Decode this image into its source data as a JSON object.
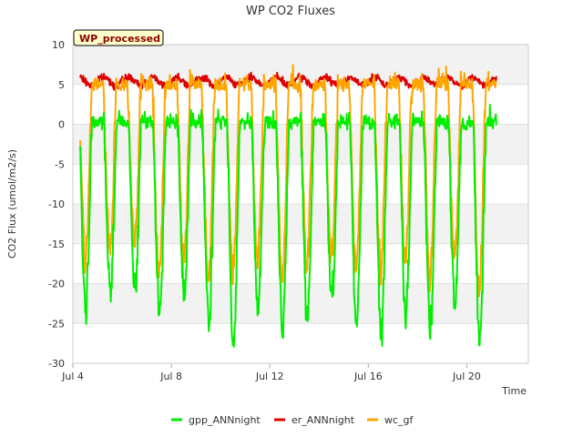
{
  "chart_data": {
    "type": "line",
    "title": "WP CO2 Fluxes",
    "xlabel": "Time",
    "ylabel": "CO2 Flux (umol/m2/s)",
    "badge": "WP_processed",
    "xlim": [
      4.0,
      22.5
    ],
    "ylim": [
      -30,
      10
    ],
    "x_ticks": [
      {
        "value": 4,
        "label": "Jul 4"
      },
      {
        "value": 8,
        "label": "Jul 8"
      },
      {
        "value": 12,
        "label": "Jul 12"
      },
      {
        "value": 16,
        "label": "Jul 16"
      },
      {
        "value": 20,
        "label": "Jul 20"
      }
    ],
    "y_ticks": [
      -30,
      -25,
      -20,
      -15,
      -10,
      -5,
      0,
      5,
      10
    ],
    "x_start": 4.3,
    "x_end": 21.2,
    "series": [
      {
        "name": "gpp_ANNnight",
        "color": "#00ee00",
        "daily_min": [
          -23,
          -21,
          -21,
          -24,
          -21,
          -25,
          -28,
          -23,
          -26,
          -24,
          -22,
          -25,
          -26,
          -24,
          -26,
          -23,
          -27
        ],
        "noon_offset": 0.52,
        "night_level": 0.3
      },
      {
        "name": "er_ANNnight",
        "color": "#dd0000",
        "night_level": 5.4
      },
      {
        "name": "wc_gf",
        "color": "#ffa500",
        "daily_min": [
          -17,
          -16,
          -15,
          -19,
          -17,
          -19,
          -19,
          -17,
          -19,
          -18,
          -17,
          -18,
          -18,
          -17,
          -19,
          -17,
          -21
        ],
        "noon_offset": 0.5,
        "night_level": 5.0
      }
    ]
  }
}
